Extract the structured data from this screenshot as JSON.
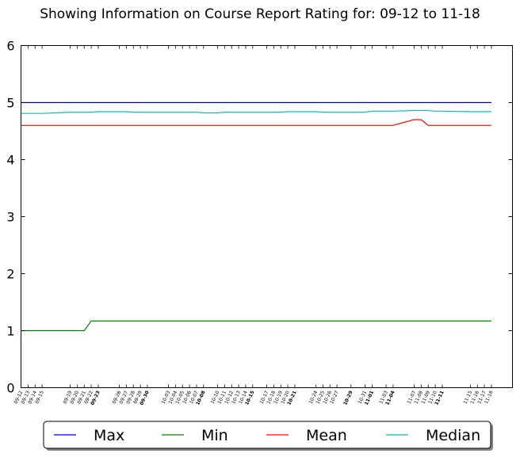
{
  "chart_data": {
    "type": "line",
    "title": "Showing Information on Course Report Rating for: 09-12 to 11-18",
    "xlabel": "",
    "ylabel": "",
    "ylim": [
      0,
      6
    ],
    "yticks": [
      0,
      1,
      2,
      3,
      4,
      5,
      6
    ],
    "grid": false,
    "legend_position": "bottom",
    "x": [
      "09-12",
      "09-13",
      "09-14",
      "09-15",
      "09-19",
      "09-20",
      "09-21",
      "09-22",
      "09-23",
      "09-26",
      "09-27",
      "09-28",
      "09-29",
      "09-30",
      "10-03",
      "10-04",
      "10-05",
      "10-06",
      "10-07",
      "10-08",
      "10-10",
      "10-11",
      "10-12",
      "10-13",
      "10-14",
      "10-15",
      "10-17",
      "10-18",
      "10-19",
      "10-20",
      "10-21",
      "10-24",
      "10-25",
      "10-26",
      "10-27",
      "10-29",
      "10-31",
      "11-01",
      "11-03",
      "11-04",
      "11-07",
      "11-08",
      "11-09",
      "11-10",
      "11-11",
      "11-15",
      "11-16",
      "11-17",
      "11-18"
    ],
    "x_days": [
      0,
      1,
      2,
      3,
      7,
      8,
      9,
      10,
      11,
      14,
      15,
      16,
      17,
      18,
      21,
      22,
      23,
      24,
      25,
      26,
      28,
      29,
      30,
      31,
      32,
      33,
      35,
      36,
      37,
      38,
      39,
      42,
      43,
      44,
      45,
      47,
      49,
      50,
      52,
      53,
      56,
      57,
      58,
      59,
      60,
      64,
      65,
      66,
      67
    ],
    "bold_ticks": [
      "09-23",
      "09-30",
      "10-08",
      "10-15",
      "10-21",
      "10-29",
      "11-01",
      "11-04",
      "11-11"
    ],
    "series": [
      {
        "name": "Max",
        "color": "#0000cc",
        "values": [
          5,
          5,
          5,
          5,
          5,
          5,
          5,
          5,
          5,
          5,
          5,
          5,
          5,
          5,
          5,
          5,
          5,
          5,
          5,
          5,
          5,
          5,
          5,
          5,
          5,
          5,
          5,
          5,
          5,
          5,
          5,
          5,
          5,
          5,
          5,
          5,
          5,
          5,
          5,
          5,
          5,
          5,
          5,
          5,
          5,
          5,
          5,
          5,
          5
        ]
      },
      {
        "name": "Min",
        "color": "#008000",
        "values": [
          1,
          1,
          1,
          1,
          1,
          1,
          1,
          1.17,
          1.17,
          1.17,
          1.17,
          1.17,
          1.17,
          1.17,
          1.17,
          1.17,
          1.17,
          1.17,
          1.17,
          1.17,
          1.17,
          1.17,
          1.17,
          1.17,
          1.17,
          1.17,
          1.17,
          1.17,
          1.17,
          1.17,
          1.17,
          1.17,
          1.17,
          1.17,
          1.17,
          1.17,
          1.17,
          1.17,
          1.17,
          1.17,
          1.17,
          1.17,
          1.17,
          1.17,
          1.17,
          1.17,
          1.17,
          1.17,
          1.17
        ]
      },
      {
        "name": "Mean",
        "color": "#ff0000",
        "values": [
          4.6,
          4.6,
          4.6,
          4.6,
          4.6,
          4.6,
          4.6,
          4.6,
          4.6,
          4.6,
          4.6,
          4.6,
          4.6,
          4.6,
          4.6,
          4.6,
          4.6,
          4.6,
          4.6,
          4.6,
          4.6,
          4.6,
          4.6,
          4.6,
          4.6,
          4.6,
          4.6,
          4.6,
          4.6,
          4.6,
          4.6,
          4.6,
          4.6,
          4.6,
          4.6,
          4.6,
          4.6,
          4.6,
          4.6,
          4.6,
          4.7,
          4.7,
          4.6,
          4.6,
          4.6,
          4.6,
          4.6,
          4.6,
          4.6
        ]
      },
      {
        "name": "Median",
        "color": "#00bfbf",
        "values": [
          4.81,
          4.81,
          4.81,
          4.81,
          4.83,
          4.83,
          4.83,
          4.83,
          4.84,
          4.84,
          4.84,
          4.83,
          4.83,
          4.83,
          4.83,
          4.83,
          4.83,
          4.83,
          4.83,
          4.82,
          4.82,
          4.83,
          4.83,
          4.83,
          4.83,
          4.83,
          4.83,
          4.83,
          4.83,
          4.84,
          4.84,
          4.84,
          4.83,
          4.83,
          4.83,
          4.83,
          4.83,
          4.85,
          4.85,
          4.85,
          4.86,
          4.86,
          4.86,
          4.85,
          4.85,
          4.84,
          4.84,
          4.84,
          4.84
        ]
      }
    ]
  }
}
